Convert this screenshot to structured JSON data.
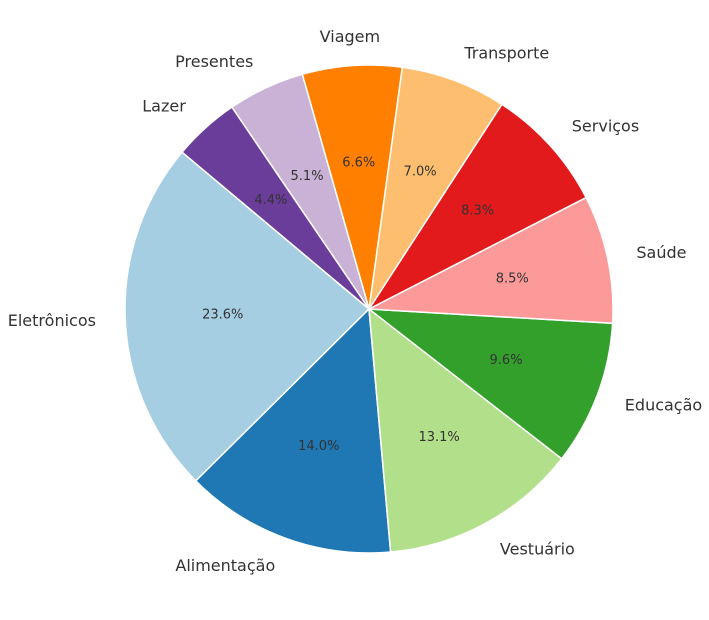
{
  "chart_data": {
    "type": "pie",
    "title": "",
    "slices": [
      {
        "label": "Eletrônicos",
        "value": 23.6,
        "pct_label": "23.6%",
        "color": "#a6cee3"
      },
      {
        "label": "Alimentação",
        "value": 14.0,
        "pct_label": "14.0%",
        "color": "#1f78b4"
      },
      {
        "label": "Vestuário",
        "value": 13.1,
        "pct_label": "13.1%",
        "color": "#b2df8a"
      },
      {
        "label": "Educação",
        "value": 9.6,
        "pct_label": "9.6%",
        "color": "#33a02c"
      },
      {
        "label": "Saúde",
        "value": 8.5,
        "pct_label": "8.5%",
        "color": "#fb9a99"
      },
      {
        "label": "Serviços",
        "value": 8.3,
        "pct_label": "8.3%",
        "color": "#e31a1c"
      },
      {
        "label": "Transporte",
        "value": 7.0,
        "pct_label": "7.0%",
        "color": "#fdbf6f"
      },
      {
        "label": "Viagem",
        "value": 6.6,
        "pct_label": "6.6%",
        "color": "#ff7f00"
      },
      {
        "label": "Presentes",
        "value": 5.1,
        "pct_label": "5.1%",
        "color": "#cab2d6"
      },
      {
        "label": "Lazer",
        "value": 4.4,
        "pct_label": "4.4%",
        "color": "#6a3d9a"
      }
    ],
    "start_angle_deg": 140,
    "direction": "counterclockwise",
    "legend": "none"
  }
}
